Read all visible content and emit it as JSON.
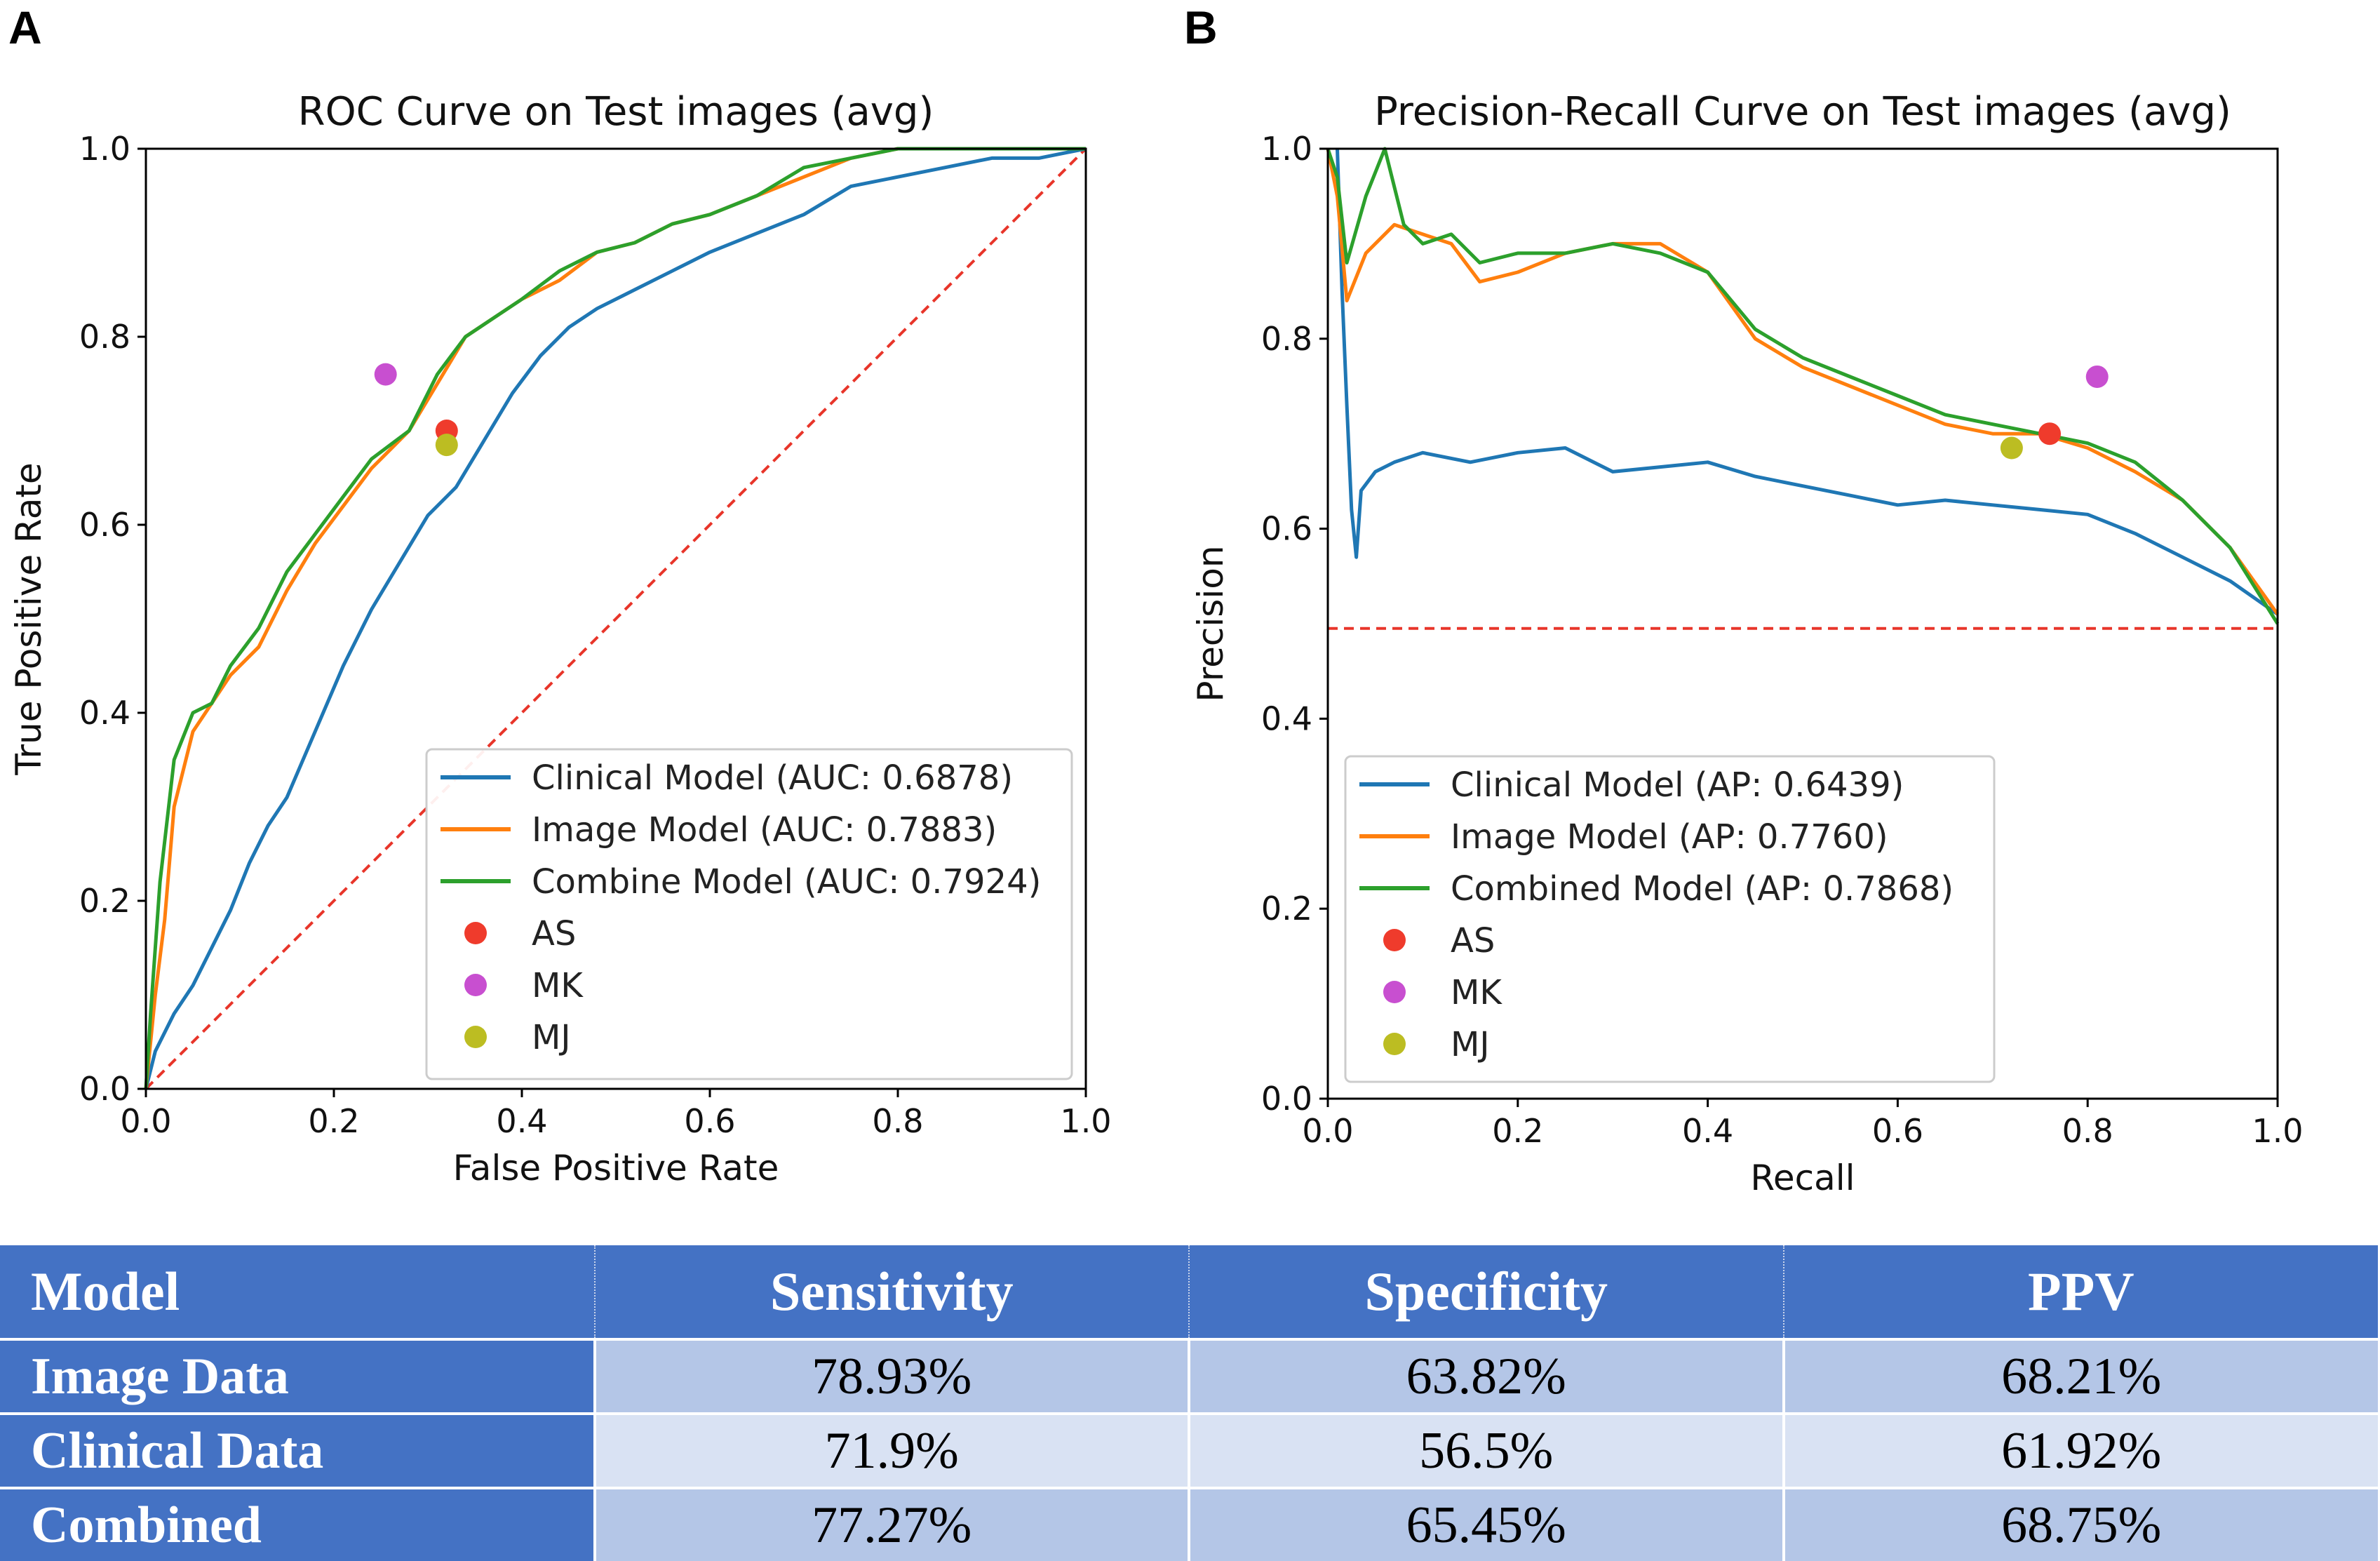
{
  "panel_labels": {
    "a": "A",
    "b": "B"
  },
  "colors": {
    "clinical": "#1f77b4",
    "image": "#ff7f0e",
    "combined": "#2ca02c",
    "AS": "#ef3b2c",
    "MK": "#c84fd0",
    "MJ": "#bcbd22",
    "baseline": "#e8352a"
  },
  "chart_data": [
    {
      "type": "line",
      "title": "ROC Curve on Test images (avg)",
      "xlabel": "False Positive Rate",
      "ylabel": "True Positive Rate",
      "xlim": [
        0,
        1
      ],
      "ylim": [
        0,
        1
      ],
      "xticks": [
        "0.0",
        "0.2",
        "0.4",
        "0.6",
        "0.8",
        "1.0"
      ],
      "yticks": [
        "0.0",
        "0.2",
        "0.4",
        "0.6",
        "0.8",
        "1.0"
      ],
      "grid": false,
      "legend_position": "lower-right",
      "baseline": {
        "points": [
          [
            0,
            0
          ],
          [
            1,
            1
          ]
        ],
        "style": "dashed"
      },
      "series": [
        {
          "key": "clinical",
          "name": "Clinical Model (AUC: 0.6878)",
          "x": [
            0,
            0.01,
            0.03,
            0.05,
            0.07,
            0.09,
            0.11,
            0.13,
            0.15,
            0.18,
            0.21,
            0.24,
            0.27,
            0.3,
            0.33,
            0.36,
            0.39,
            0.42,
            0.45,
            0.48,
            0.52,
            0.56,
            0.6,
            0.65,
            0.7,
            0.75,
            0.8,
            0.85,
            0.9,
            0.95,
            1.0
          ],
          "y": [
            0,
            0.04,
            0.08,
            0.11,
            0.15,
            0.19,
            0.24,
            0.28,
            0.31,
            0.38,
            0.45,
            0.51,
            0.56,
            0.61,
            0.64,
            0.69,
            0.74,
            0.78,
            0.81,
            0.83,
            0.85,
            0.87,
            0.89,
            0.91,
            0.93,
            0.96,
            0.97,
            0.98,
            0.99,
            0.99,
            1.0
          ]
        },
        {
          "key": "image",
          "name": "Image Model (AUC: 0.7883)",
          "x": [
            0,
            0.01,
            0.02,
            0.03,
            0.05,
            0.07,
            0.09,
            0.12,
            0.15,
            0.18,
            0.21,
            0.24,
            0.28,
            0.31,
            0.34,
            0.37,
            0.4,
            0.44,
            0.48,
            0.52,
            0.56,
            0.6,
            0.65,
            0.7,
            0.75,
            0.8,
            0.85,
            0.9,
            0.95,
            1.0
          ],
          "y": [
            0,
            0.1,
            0.18,
            0.3,
            0.38,
            0.41,
            0.44,
            0.47,
            0.53,
            0.58,
            0.62,
            0.66,
            0.7,
            0.75,
            0.8,
            0.82,
            0.84,
            0.86,
            0.89,
            0.9,
            0.92,
            0.93,
            0.95,
            0.97,
            0.99,
            1.0,
            1.0,
            1.0,
            1.0,
            1.0
          ]
        },
        {
          "key": "combined",
          "name": "Combine Model (AUC: 0.7924)",
          "x": [
            0,
            0.005,
            0.015,
            0.03,
            0.05,
            0.07,
            0.09,
            0.12,
            0.15,
            0.18,
            0.21,
            0.24,
            0.28,
            0.31,
            0.34,
            0.37,
            0.4,
            0.44,
            0.48,
            0.52,
            0.56,
            0.6,
            0.65,
            0.7,
            0.75,
            0.8,
            0.85,
            0.9,
            0.95,
            1.0
          ],
          "y": [
            0,
            0.08,
            0.22,
            0.35,
            0.4,
            0.41,
            0.45,
            0.49,
            0.55,
            0.59,
            0.63,
            0.67,
            0.7,
            0.76,
            0.8,
            0.82,
            0.84,
            0.87,
            0.89,
            0.9,
            0.92,
            0.93,
            0.95,
            0.98,
            0.99,
            1.0,
            1.0,
            1.0,
            1.0,
            1.0
          ]
        }
      ],
      "points": [
        {
          "key": "AS",
          "label": "AS",
          "x": 0.32,
          "y": 0.7
        },
        {
          "key": "MK",
          "label": "MK",
          "x": 0.255,
          "y": 0.76
        },
        {
          "key": "MJ",
          "label": "MJ",
          "x": 0.32,
          "y": 0.685
        }
      ]
    },
    {
      "type": "line",
      "title": "Precision-Recall Curve on Test images (avg)",
      "xlabel": "Recall",
      "ylabel": "Precision",
      "xlim": [
        0,
        1
      ],
      "ylim": [
        0,
        1
      ],
      "xticks": [
        "0.0",
        "0.2",
        "0.4",
        "0.6",
        "0.8",
        "1.0"
      ],
      "yticks": [
        "0.0",
        "0.2",
        "0.4",
        "0.6",
        "0.8",
        "1.0"
      ],
      "grid": false,
      "legend_position": "lower-left",
      "baseline": {
        "points": [
          [
            0,
            0.495
          ],
          [
            1,
            0.495
          ]
        ],
        "style": "dashed"
      },
      "series": [
        {
          "key": "clinical",
          "name": "Clinical Model (AP: 0.6439)",
          "x": [
            0.01,
            0.015,
            0.02,
            0.025,
            0.03,
            0.035,
            0.05,
            0.07,
            0.1,
            0.15,
            0.2,
            0.25,
            0.3,
            0.35,
            0.4,
            0.45,
            0.5,
            0.55,
            0.6,
            0.65,
            0.7,
            0.75,
            0.8,
            0.85,
            0.9,
            0.95,
            1.0
          ],
          "y": [
            1.0,
            0.85,
            0.73,
            0.62,
            0.57,
            0.64,
            0.66,
            0.67,
            0.68,
            0.67,
            0.68,
            0.685,
            0.66,
            0.665,
            0.67,
            0.655,
            0.645,
            0.635,
            0.625,
            0.63,
            0.625,
            0.62,
            0.615,
            0.595,
            0.57,
            0.545,
            0.51
          ]
        },
        {
          "key": "image",
          "name": "Image Model (AP: 0.7760)",
          "x": [
            0.0,
            0.01,
            0.02,
            0.04,
            0.07,
            0.1,
            0.13,
            0.16,
            0.2,
            0.25,
            0.3,
            0.35,
            0.4,
            0.45,
            0.5,
            0.55,
            0.6,
            0.65,
            0.7,
            0.75,
            0.8,
            0.85,
            0.9,
            0.95,
            1.0
          ],
          "y": [
            1.0,
            0.95,
            0.84,
            0.89,
            0.92,
            0.91,
            0.9,
            0.86,
            0.87,
            0.89,
            0.9,
            0.9,
            0.87,
            0.8,
            0.77,
            0.75,
            0.73,
            0.71,
            0.7,
            0.7,
            0.685,
            0.66,
            0.63,
            0.58,
            0.51
          ]
        },
        {
          "key": "combined",
          "name": "Combined Model (AP: 0.7868)",
          "x": [
            0.0,
            0.01,
            0.02,
            0.04,
            0.06,
            0.08,
            0.1,
            0.13,
            0.16,
            0.2,
            0.25,
            0.3,
            0.35,
            0.4,
            0.45,
            0.5,
            0.55,
            0.6,
            0.65,
            0.7,
            0.75,
            0.8,
            0.85,
            0.9,
            0.95,
            1.0
          ],
          "y": [
            1.0,
            0.97,
            0.88,
            0.95,
            1.0,
            0.92,
            0.9,
            0.91,
            0.88,
            0.89,
            0.89,
            0.9,
            0.89,
            0.87,
            0.81,
            0.78,
            0.76,
            0.74,
            0.72,
            0.71,
            0.7,
            0.69,
            0.67,
            0.63,
            0.58,
            0.5
          ]
        }
      ],
      "points": [
        {
          "key": "AS",
          "label": "AS",
          "x": 0.76,
          "y": 0.7
        },
        {
          "key": "MK",
          "label": "MK",
          "x": 0.81,
          "y": 0.76
        },
        {
          "key": "MJ",
          "label": "MJ",
          "x": 0.72,
          "y": 0.685
        }
      ]
    }
  ],
  "table": {
    "headers": [
      "Model",
      "Sensitivity",
      "Specificity",
      "PPV"
    ],
    "rows": [
      [
        "Image Data",
        "78.93%",
        "63.82%",
        "68.21%"
      ],
      [
        "Clinical Data",
        "71.9%",
        "56.5%",
        "61.92%"
      ],
      [
        "Combined",
        "77.27%",
        "65.45%",
        "68.75%"
      ]
    ]
  }
}
